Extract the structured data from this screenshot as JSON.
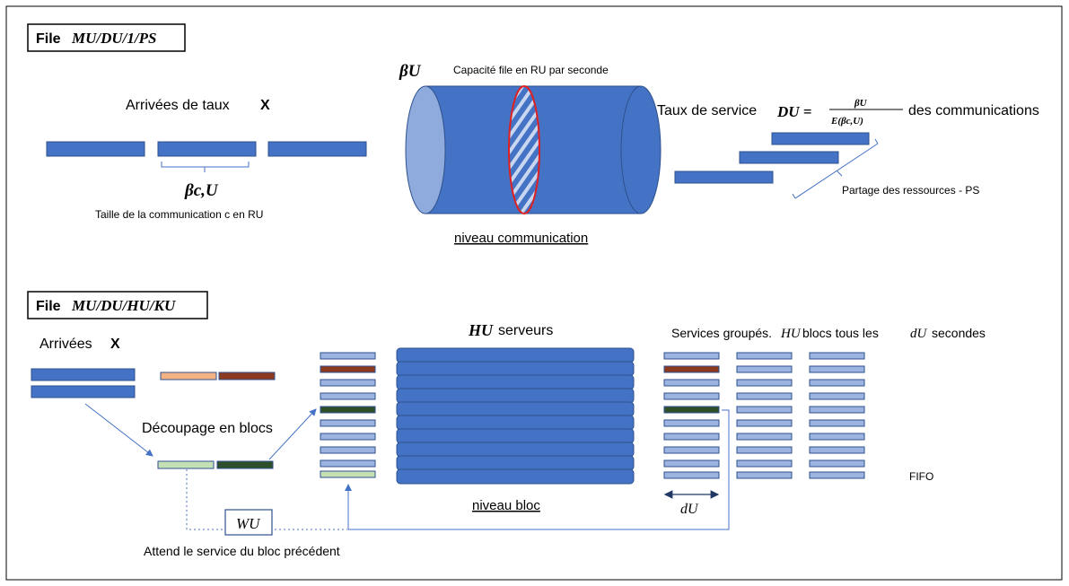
{
  "top_section": {
    "title_prefix": "File",
    "title_notation": "MU/DU/1/PS",
    "arrivals_label": "Arrivées de taux",
    "arrivals_symbol": "X",
    "size_symbol": "βc,U",
    "size_caption": "Taille de la communication c en RU",
    "capacity_symbol": "βU",
    "capacity_caption": "Capacité file en RU par seconde",
    "level_label": "niveau communication",
    "service_rate_label": "Taux de service",
    "service_rate_symbol": "DU =",
    "fraction_numerator": "βU",
    "fraction_denominator": "E(βc,U)",
    "service_rate_suffix": "des communications",
    "sharing_label": "Partage des ressources - PS"
  },
  "bottom_section": {
    "title_prefix": "File",
    "title_notation": "MU/DU/HU/KU",
    "arrivals_label": "Arrivées",
    "arrivals_symbol": "X",
    "cut_label": "Découpage en blocs",
    "servers_symbol": "HU",
    "servers_label": "serveurs",
    "grouped_label": "Services groupés.",
    "grouped_symbol": "HU",
    "grouped_mid": "blocs tous les",
    "grouped_period": "dU",
    "grouped_suffix": "secondes",
    "fifo_label": "FIFO",
    "level_label": "niveau bloc",
    "period_symbol": "dU",
    "wait_symbol": "WU",
    "wait_caption": "Attend le service du bloc précédent"
  },
  "colors": {
    "block_blue": "#4472C4",
    "light_block": "#9DB3E0",
    "brown_block": "#8B3A1F",
    "green_block": "#2F4F2A",
    "mint_block": "#C5E0B4",
    "peach_block": "#F4B183",
    "hatch_red": "#E02020"
  }
}
